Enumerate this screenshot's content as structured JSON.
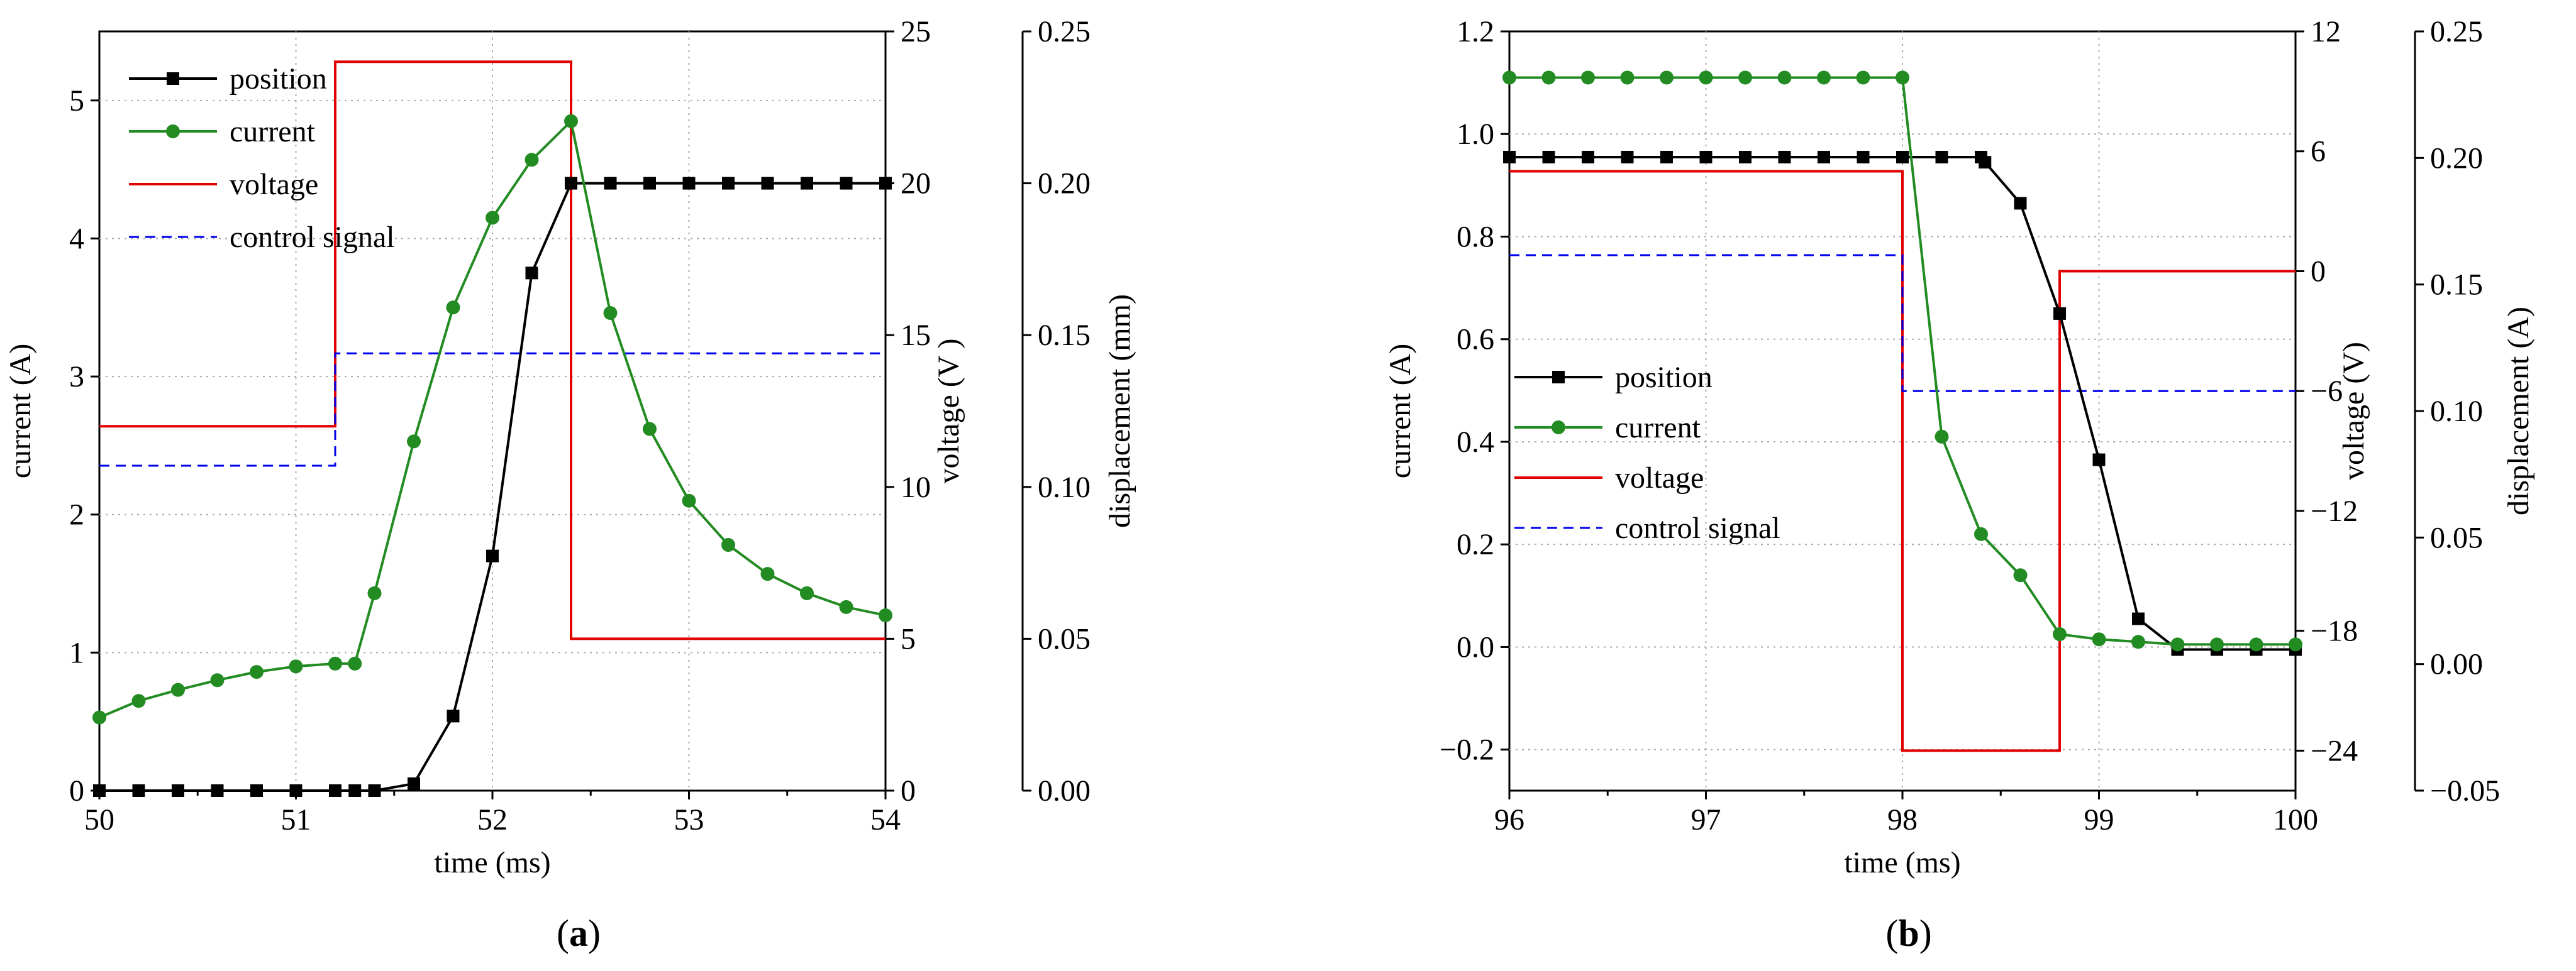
{
  "chart_data": [
    {
      "type": "line",
      "panel_label": "a",
      "xlabel": "time (ms)",
      "xlim": [
        50,
        54
      ],
      "xticks": [
        "50",
        "51",
        "52",
        "53",
        "54"
      ],
      "axes": {
        "current": {
          "label": "current (A)",
          "lim": [
            0,
            5.5
          ],
          "ticks": [
            "0",
            "1",
            "2",
            "3",
            "4",
            "5"
          ]
        },
        "voltage": {
          "label": "voltage (V )",
          "lim": [
            0,
            25
          ],
          "ticks": [
            "0",
            "5",
            "10",
            "15",
            "20",
            "25"
          ]
        },
        "displacement": {
          "label": "displacement (mm)",
          "lim": [
            0,
            0.25
          ],
          "ticks": [
            "0.00",
            "0.05",
            "0.10",
            "0.15",
            "0.20",
            "0.25"
          ]
        }
      },
      "legend": [
        "position",
        "current",
        "voltage",
        "control signal"
      ],
      "legend_position": "top-left",
      "grid": true,
      "series": [
        {
          "name": "position",
          "axis": "current",
          "color": "#000000",
          "marker": "square",
          "style": "solid",
          "x": [
            50.0,
            50.2,
            50.4,
            50.6,
            50.8,
            51.0,
            51.2,
            51.3,
            51.4,
            51.6,
            51.8,
            52.0,
            52.2,
            52.4,
            52.6,
            52.8,
            53.0,
            53.2,
            53.4,
            53.6,
            53.8,
            54.0
          ],
          "y": [
            0.0,
            0.0,
            0.0,
            0.0,
            0.0,
            0.0,
            0.0,
            0.0,
            0.0,
            0.05,
            0.54,
            1.7,
            3.75,
            4.4,
            4.4,
            4.4,
            4.4,
            4.4,
            4.4,
            4.4,
            4.4,
            4.4
          ]
        },
        {
          "name": "current",
          "axis": "current",
          "color": "#228B22",
          "marker": "circle",
          "style": "solid",
          "x": [
            50.0,
            50.2,
            50.4,
            50.6,
            50.8,
            51.0,
            51.2,
            51.3,
            51.4,
            51.6,
            51.8,
            52.0,
            52.2,
            52.4,
            52.6,
            52.8,
            53.0,
            53.2,
            53.4,
            53.6,
            53.8,
            54.0
          ],
          "y": [
            0.53,
            0.65,
            0.73,
            0.8,
            0.86,
            0.9,
            0.92,
            0.92,
            1.43,
            2.53,
            3.5,
            4.15,
            4.57,
            4.85,
            3.46,
            2.62,
            2.1,
            1.78,
            1.57,
            1.43,
            1.33,
            1.27
          ]
        },
        {
          "name": "voltage",
          "axis": "voltage",
          "color": "#E00000",
          "marker": "none",
          "style": "solid",
          "x": [
            50.0,
            51.2,
            51.2,
            52.4,
            52.4,
            54.0
          ],
          "y": [
            12.0,
            12.0,
            24.0,
            24.0,
            5.0,
            5.0
          ]
        },
        {
          "name": "control signal",
          "axis": "voltage",
          "color": "#0000EE",
          "marker": "none",
          "style": "dashed",
          "x": [
            50.0,
            51.2,
            51.2,
            54.0
          ],
          "y": [
            10.7,
            10.7,
            14.4,
            14.4
          ]
        }
      ]
    },
    {
      "type": "line",
      "panel_label": "b",
      "xlabel": "time (ms)",
      "xlim": [
        96,
        100
      ],
      "xticks": [
        "96",
        "97",
        "98",
        "99",
        "100"
      ],
      "axes": {
        "current": {
          "label": "current (A)",
          "lim": [
            -0.28,
            1.2
          ],
          "ticks": [
            "−0.2",
            "0.0",
            "0.2",
            "0.4",
            "0.6",
            "0.8",
            "1.0",
            "1.2"
          ]
        },
        "voltage": {
          "label": "voltage (V)",
          "lim": [
            -26,
            12
          ],
          "ticks": [
            "−24",
            "−18",
            "−12",
            "−6",
            "0",
            "6",
            "12"
          ]
        },
        "displacement": {
          "label": "displacement (A)",
          "lim": [
            -0.05,
            0.25
          ],
          "ticks": [
            "−0.05",
            "0.00",
            "0.05",
            "0.10",
            "0.15",
            "0.20",
            "0.25"
          ]
        }
      },
      "legend": [
        "position",
        "current",
        "voltage",
        "control signal"
      ],
      "legend_position": "center-left",
      "grid": true,
      "series": [
        {
          "name": "position",
          "axis": "current",
          "color": "#000000",
          "marker": "square",
          "style": "solid",
          "x": [
            96.0,
            96.2,
            96.4,
            96.6,
            96.8,
            97.0,
            97.2,
            97.4,
            97.6,
            97.8,
            98.0,
            98.2,
            98.4,
            98.42,
            98.6,
            98.8,
            99.0,
            99.2,
            99.4,
            99.6,
            99.8,
            100.0
          ],
          "y": [
            0.955,
            0.955,
            0.955,
            0.955,
            0.955,
            0.955,
            0.955,
            0.955,
            0.955,
            0.955,
            0.955,
            0.955,
            0.955,
            0.945,
            0.865,
            0.65,
            0.365,
            0.055,
            -0.005,
            -0.005,
            -0.005,
            -0.005
          ]
        },
        {
          "name": "current",
          "axis": "current",
          "color": "#228B22",
          "marker": "circle",
          "style": "solid",
          "x": [
            96.0,
            96.2,
            96.4,
            96.6,
            96.8,
            97.0,
            97.2,
            97.4,
            97.6,
            97.8,
            98.0,
            98.2,
            98.4,
            98.6,
            98.8,
            99.0,
            99.2,
            99.4,
            99.6,
            99.8,
            100.0
          ],
          "y": [
            1.11,
            1.11,
            1.11,
            1.11,
            1.11,
            1.11,
            1.11,
            1.11,
            1.11,
            1.11,
            1.11,
            0.41,
            0.22,
            0.14,
            0.025,
            0.015,
            0.01,
            0.005,
            0.005,
            0.005,
            0.005
          ]
        },
        {
          "name": "voltage",
          "axis": "voltage",
          "color": "#E00000",
          "marker": "none",
          "style": "solid",
          "x": [
            96.0,
            98.0,
            98.0,
            98.8,
            98.8,
            100.0
          ],
          "y": [
            5.0,
            5.0,
            -24.0,
            -24.0,
            0.0,
            0.0
          ]
        },
        {
          "name": "control signal",
          "axis": "voltage",
          "color": "#0000EE",
          "marker": "none",
          "style": "dashed",
          "x": [
            96.0,
            98.0,
            98.0,
            100.0
          ],
          "y": [
            0.8,
            0.8,
            -6.0,
            -6.0
          ]
        }
      ]
    }
  ]
}
